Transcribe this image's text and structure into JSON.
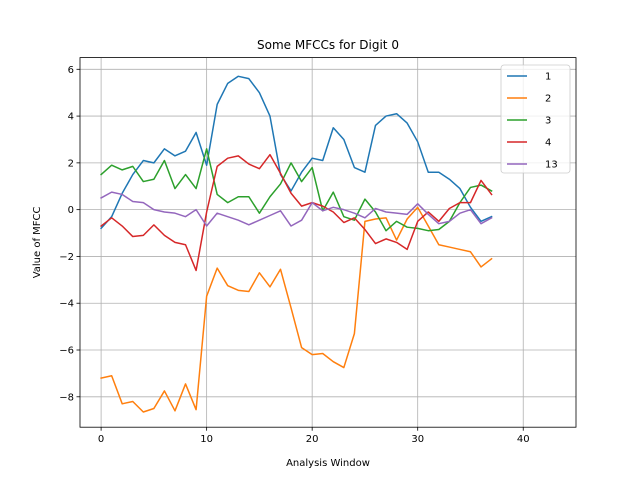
{
  "chart_data": {
    "type": "line",
    "title": "Some MFCCs for Digit 0",
    "xlabel": "Analysis Window",
    "ylabel": "Value of MFCC",
    "xlim": [
      -2,
      45
    ],
    "ylim": [
      -9.3,
      6.5
    ],
    "xticks": [
      0,
      10,
      20,
      30,
      40
    ],
    "yticks": [
      -8,
      -6,
      -4,
      -2,
      0,
      2,
      4,
      6
    ],
    "grid": true,
    "legend_position": "top-right",
    "x": [
      0,
      1,
      2,
      3,
      4,
      5,
      6,
      7,
      8,
      9,
      10,
      11,
      12,
      13,
      14,
      15,
      16,
      17,
      18,
      19,
      20,
      21,
      22,
      23,
      24,
      25,
      26,
      27,
      28,
      29,
      30,
      31,
      32,
      33,
      34,
      35,
      36,
      37
    ],
    "series": [
      {
        "name": "1",
        "color": "#1f77b4",
        "values": [
          -0.8,
          -0.3,
          0.7,
          1.5,
          2.1,
          2.0,
          2.6,
          2.3,
          2.5,
          3.3,
          1.9,
          4.5,
          5.4,
          5.7,
          5.6,
          5.0,
          4.0,
          1.5,
          0.8,
          1.6,
          2.2,
          2.1,
          3.5,
          3.0,
          1.8,
          1.6,
          3.6,
          4.0,
          4.1,
          3.7,
          2.9,
          1.6,
          1.6,
          1.3,
          0.9,
          0.1,
          -0.5,
          -0.3
        ]
      },
      {
        "name": "2",
        "color": "#ff7f0e",
        "values": [
          -7.2,
          -7.1,
          -8.3,
          -8.2,
          -8.65,
          -8.5,
          -7.75,
          -8.6,
          -7.45,
          -8.55,
          -3.7,
          -2.5,
          -3.25,
          -3.45,
          -3.5,
          -2.7,
          -3.3,
          -2.55,
          -4.2,
          -5.9,
          -6.2,
          -6.15,
          -6.5,
          -6.75,
          -5.3,
          -0.5,
          -0.4,
          -0.35,
          -1.3,
          -0.4,
          0.1,
          -0.7,
          -1.5,
          -1.6,
          -1.7,
          -1.8,
          -2.45,
          -2.1
        ]
      },
      {
        "name": "3",
        "color": "#2ca02c",
        "values": [
          1.5,
          1.9,
          1.7,
          1.85,
          1.2,
          1.3,
          2.1,
          0.9,
          1.5,
          0.9,
          2.6,
          0.65,
          0.3,
          0.55,
          0.55,
          -0.15,
          0.55,
          1.1,
          2.0,
          1.2,
          1.8,
          -0.05,
          0.75,
          -0.3,
          -0.45,
          0.45,
          -0.1,
          -0.9,
          -0.5,
          -0.75,
          -0.8,
          -0.9,
          -0.85,
          -0.5,
          0.3,
          0.95,
          1.05,
          0.8
        ]
      },
      {
        "name": "4",
        "color": "#d62728",
        "values": [
          -0.7,
          -0.35,
          -0.7,
          -1.15,
          -1.1,
          -0.65,
          -1.1,
          -1.4,
          -1.5,
          -2.6,
          -0.1,
          1.85,
          2.2,
          2.3,
          1.95,
          1.75,
          2.35,
          1.55,
          0.7,
          0.15,
          0.3,
          0.15,
          -0.1,
          -0.55,
          -0.35,
          -0.85,
          -1.45,
          -1.25,
          -1.4,
          -1.7,
          -0.5,
          -0.1,
          -0.5,
          0.05,
          0.3,
          0.3,
          1.25,
          0.65
        ]
      },
      {
        "name": "13",
        "color": "#9467bd",
        "values": [
          0.5,
          0.75,
          0.65,
          0.35,
          0.3,
          0.0,
          -0.1,
          -0.15,
          -0.3,
          0.0,
          -0.7,
          -0.15,
          -0.3,
          -0.45,
          -0.65,
          -0.45,
          -0.25,
          -0.05,
          -0.7,
          -0.45,
          0.3,
          -0.05,
          0.1,
          0.0,
          -0.15,
          -0.35,
          0.05,
          -0.1,
          -0.15,
          -0.2,
          0.25,
          -0.2,
          -0.6,
          -0.5,
          -0.15,
          0.0,
          -0.6,
          -0.35
        ]
      }
    ]
  }
}
